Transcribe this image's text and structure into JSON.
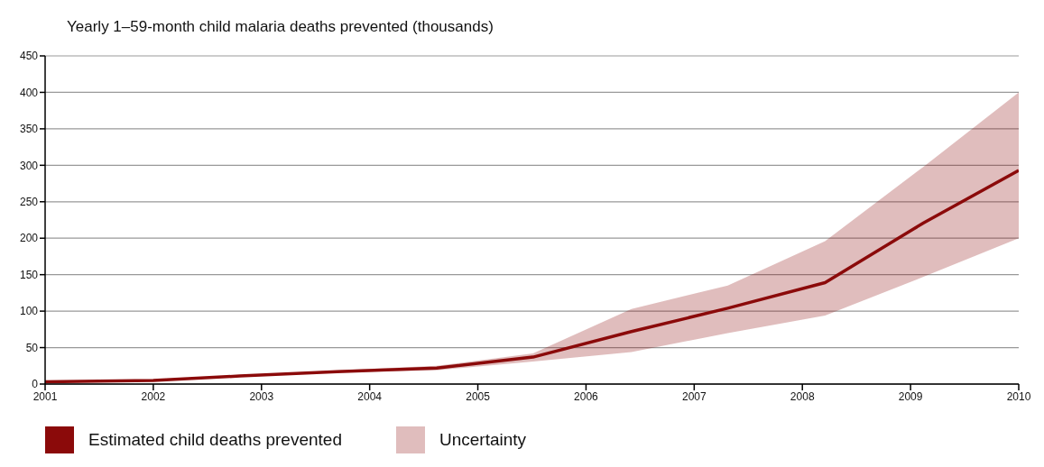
{
  "chart_data": {
    "type": "line",
    "title": "Yearly 1–59-month child malaria deaths prevented (thousands)",
    "x": [
      2001,
      2002,
      2002.8,
      2003.7,
      2004.62,
      2005.51,
      2006.42,
      2007.31,
      2008.21,
      2009.12,
      2010
    ],
    "series": [
      {
        "name": "Estimated child deaths prevented",
        "color": "#8b0a0a",
        "values": [
          3,
          5,
          11,
          17,
          22,
          37,
          72,
          104,
          139,
          221,
          293
        ],
        "lower": [
          2,
          4,
          10,
          16,
          19,
          31,
          44,
          70,
          94,
          147,
          200
        ],
        "upper": [
          4,
          6,
          12,
          19,
          25,
          42,
          103,
          135,
          196,
          298,
          400
        ]
      }
    ],
    "annotations": [
      "Uncertainty"
    ],
    "xlim": [
      2001,
      2010
    ],
    "xticks": [
      2001,
      2002,
      2003,
      2004,
      2005,
      2006,
      2007,
      2008,
      2009,
      2010
    ],
    "ylim": [
      0,
      450
    ],
    "yticks": [
      0,
      50,
      100,
      150,
      200,
      250,
      300,
      350,
      400,
      450
    ],
    "grid": "y",
    "legend": "bottom",
    "marker": "none",
    "line_style": "solid"
  }
}
